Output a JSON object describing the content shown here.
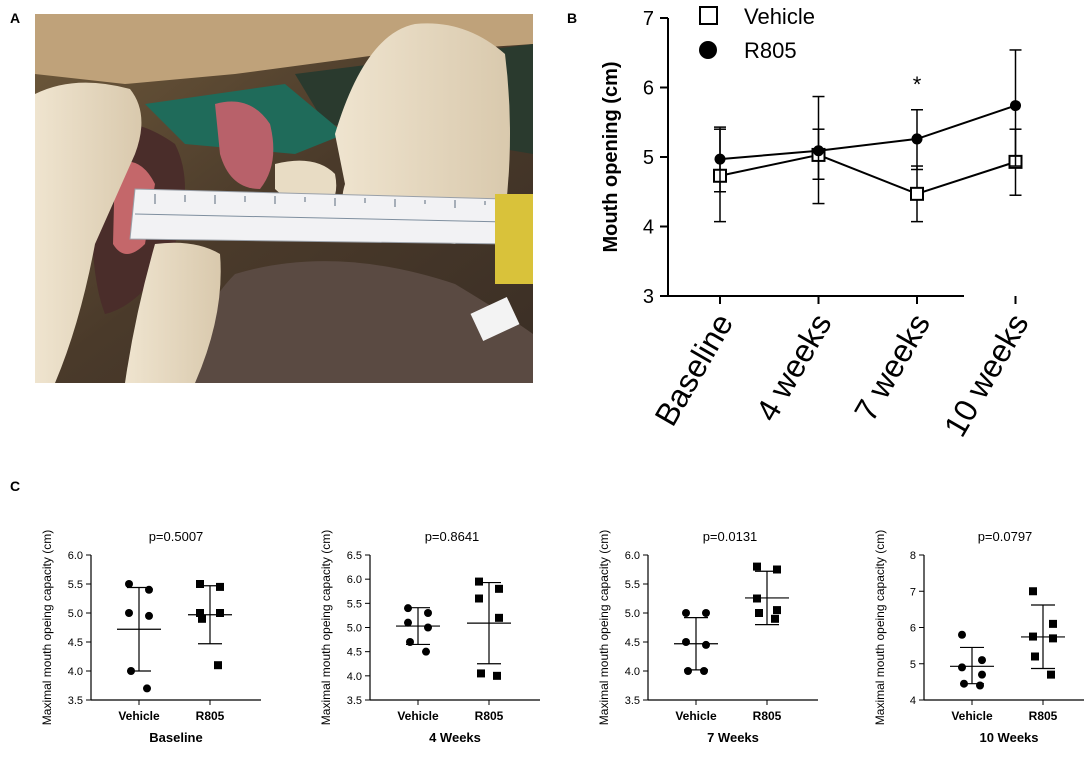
{
  "panels": {
    "a": "A",
    "b": "B",
    "c": "C"
  },
  "chart_data": [
    {
      "panel": "B",
      "type": "line",
      "ylabel": "Mouth opening (cm)",
      "categories": [
        "Baseline",
        "4 weeks",
        "7 weeks",
        "10 weeks"
      ],
      "ylim": [
        3,
        7
      ],
      "yticks": [
        3,
        4,
        5,
        6,
        7
      ],
      "legend_position": "top",
      "series": [
        {
          "name": "Vehicle",
          "marker": "open-square",
          "values": [
            4.73,
            5.03,
            4.47,
            4.93
          ],
          "err_low": [
            4.07,
            4.33,
            4.07,
            4.45
          ],
          "err_high": [
            5.43,
            5.4,
            4.87,
            5.4
          ]
        },
        {
          "name": "R805",
          "marker": "filled-circle",
          "values": [
            4.97,
            5.09,
            5.26,
            5.74
          ],
          "err_low": [
            4.5,
            4.68,
            4.82,
            4.87
          ],
          "err_high": [
            5.4,
            5.87,
            5.68,
            6.54
          ]
        }
      ],
      "annotations": [
        {
          "category": "7 weeks",
          "text": "*"
        }
      ]
    },
    {
      "panel": "C",
      "type": "scatter",
      "title": "p=0.5007",
      "xlabel": "Baseline",
      "ylabel": "Maximal mouth opeing capacity (cm)",
      "categories": [
        "Vehicle",
        "R805"
      ],
      "ylim": [
        3.5,
        6.0
      ],
      "yticks": [
        "3.5",
        "4.0",
        "4.5",
        "5.0",
        "5.5",
        "6.0"
      ],
      "groups": [
        {
          "name": "Vehicle",
          "marker": "circle",
          "points": [
            5.5,
            5.4,
            5.0,
            4.95,
            4.0,
            3.7
          ],
          "mean": 4.72,
          "sd_low": 4.0,
          "sd_high": 5.44
        },
        {
          "name": "R805",
          "marker": "square",
          "points": [
            5.5,
            5.45,
            5.0,
            5.0,
            4.9,
            4.1
          ],
          "mean": 4.97,
          "sd_low": 4.47,
          "sd_high": 5.47
        }
      ]
    },
    {
      "panel": "C",
      "type": "scatter",
      "title": "p=0.8641",
      "xlabel": "4 Weeks",
      "ylabel": "Maximal mouth opeing capacity (cm)",
      "categories": [
        "Vehicle",
        "R805"
      ],
      "ylim": [
        3.5,
        6.5
      ],
      "yticks": [
        "3.5",
        "4.0",
        "4.5",
        "5.0",
        "5.5",
        "6.0",
        "6.5"
      ],
      "groups": [
        {
          "name": "Vehicle",
          "marker": "circle",
          "points": [
            5.4,
            5.3,
            5.1,
            5.0,
            4.7,
            4.5
          ],
          "mean": 5.03,
          "sd_low": 4.65,
          "sd_high": 5.41
        },
        {
          "name": "R805",
          "marker": "square",
          "points": [
            5.95,
            5.8,
            5.6,
            5.2,
            4.05,
            4.0
          ],
          "mean": 5.09,
          "sd_low": 4.25,
          "sd_high": 5.93
        }
      ]
    },
    {
      "panel": "C",
      "type": "scatter",
      "title": "p=0.0131",
      "xlabel": "7 Weeks",
      "ylabel": "Maximal mouth opeing capacity (cm)",
      "categories": [
        "Vehicle",
        "R805"
      ],
      "ylim": [
        3.5,
        6.0
      ],
      "yticks": [
        "3.5",
        "4.0",
        "4.5",
        "5.0",
        "5.5",
        "6.0"
      ],
      "groups": [
        {
          "name": "Vehicle",
          "marker": "circle",
          "points": [
            5.0,
            5.0,
            4.5,
            4.45,
            4.0,
            4.0
          ],
          "mean": 4.47,
          "sd_low": 4.02,
          "sd_high": 4.92
        },
        {
          "name": "R805",
          "marker": "square",
          "points": [
            5.8,
            5.75,
            5.25,
            5.05,
            5.0,
            4.9
          ],
          "mean": 5.26,
          "sd_low": 4.8,
          "sd_high": 5.72
        }
      ]
    },
    {
      "panel": "C",
      "type": "scatter",
      "title": "p=0.0797",
      "xlabel": "10 Weeks",
      "ylabel": "Maximal mouth opeing capacity (cm)",
      "categories": [
        "Vehicle",
        "R805"
      ],
      "ylim": [
        4,
        8
      ],
      "yticks": [
        "4",
        "5",
        "6",
        "7",
        "8"
      ],
      "groups": [
        {
          "name": "Vehicle",
          "marker": "circle",
          "points": [
            5.8,
            5.1,
            4.9,
            4.7,
            4.45,
            4.4
          ],
          "mean": 4.93,
          "sd_low": 4.45,
          "sd_high": 5.45
        },
        {
          "name": "R805",
          "marker": "square",
          "points": [
            7.0,
            6.1,
            5.75,
            5.7,
            5.2,
            4.7
          ],
          "mean": 5.74,
          "sd_low": 4.87,
          "sd_high": 6.62
        }
      ]
    }
  ]
}
